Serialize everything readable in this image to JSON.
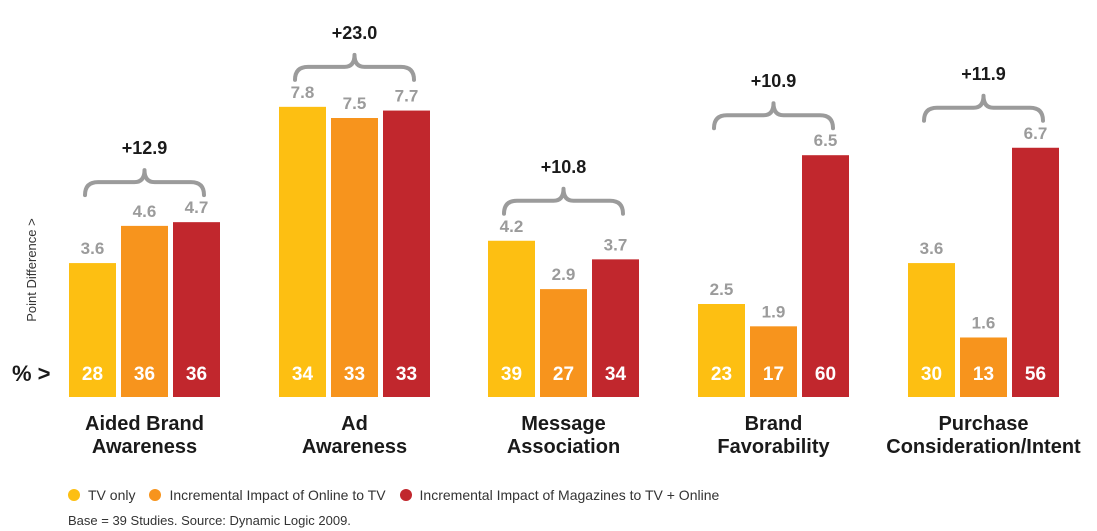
{
  "chart_data": {
    "type": "bar",
    "ylabel": "Point Difference >",
    "row_prefix": "% >",
    "colors": {
      "tv": "#FDBF12",
      "online": "#F7941D",
      "magazines": "#C1272D"
    },
    "categories": [
      {
        "label": [
          "Aided Brand",
          "Awareness"
        ],
        "increase": "+12.9"
      },
      {
        "label": [
          "Ad",
          "Awareness"
        ],
        "increase": "+23.0"
      },
      {
        "label": [
          "Message",
          "Association"
        ],
        "increase": "+10.8"
      },
      {
        "label": [
          "Brand",
          "Favorability"
        ],
        "increase": "+10.9"
      },
      {
        "label": [
          "Purchase",
          "Consideration/Intent"
        ],
        "increase": "+11.9"
      }
    ],
    "series": [
      {
        "name": "TV only",
        "color": "#FDBF12",
        "values": [
          3.6,
          7.8,
          4.2,
          2.5,
          3.6
        ],
        "percent": [
          28,
          34,
          39,
          23,
          30
        ]
      },
      {
        "name": "Incremental Impact of Online to TV",
        "color": "#F7941D",
        "values": [
          4.6,
          7.5,
          2.9,
          1.9,
          1.6
        ],
        "percent": [
          36,
          33,
          27,
          17,
          13
        ]
      },
      {
        "name": "Incremental Impact of Magazines to TV + Online",
        "color": "#C1272D",
        "values": [
          4.7,
          7.7,
          3.7,
          6.5,
          6.7
        ],
        "percent": [
          36,
          33,
          34,
          60,
          56
        ]
      }
    ],
    "ylim": [
      0,
      8.4
    ],
    "grid": false,
    "legend_position": "bottom-left"
  },
  "footer": {
    "source": "Base = 39 Studies. Source: Dynamic Logic 2009."
  }
}
